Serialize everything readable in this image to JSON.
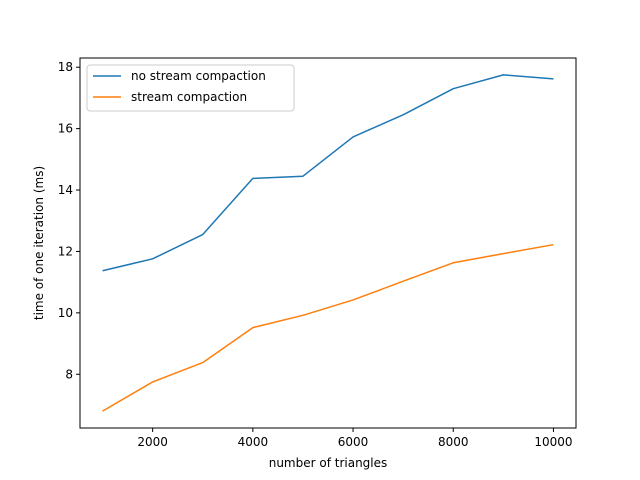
{
  "chart_data": {
    "type": "line",
    "title": "",
    "xlabel": "number of triangles",
    "ylabel": "time of one iteration (ms)",
    "xlim": [
      550,
      10450
    ],
    "ylim": [
      6.25,
      18.3
    ],
    "xticks": [
      2000,
      4000,
      6000,
      8000,
      10000
    ],
    "yticks": [
      8,
      10,
      12,
      14,
      16,
      18
    ],
    "grid": false,
    "legend_position": "upper-left",
    "x": [
      1000,
      2000,
      3000,
      4000,
      5000,
      6000,
      7000,
      8000,
      9000,
      10000
    ],
    "series": [
      {
        "name": "no stream compaction",
        "color": "#1f77b4",
        "values": [
          11.37,
          11.76,
          12.55,
          14.38,
          14.45,
          15.73,
          16.45,
          17.3,
          17.75,
          17.62
        ]
      },
      {
        "name": "stream compaction",
        "color": "#ff7f0e",
        "values": [
          6.8,
          7.75,
          8.38,
          9.52,
          9.92,
          10.42,
          11.03,
          11.63,
          11.93,
          12.22
        ]
      }
    ]
  }
}
